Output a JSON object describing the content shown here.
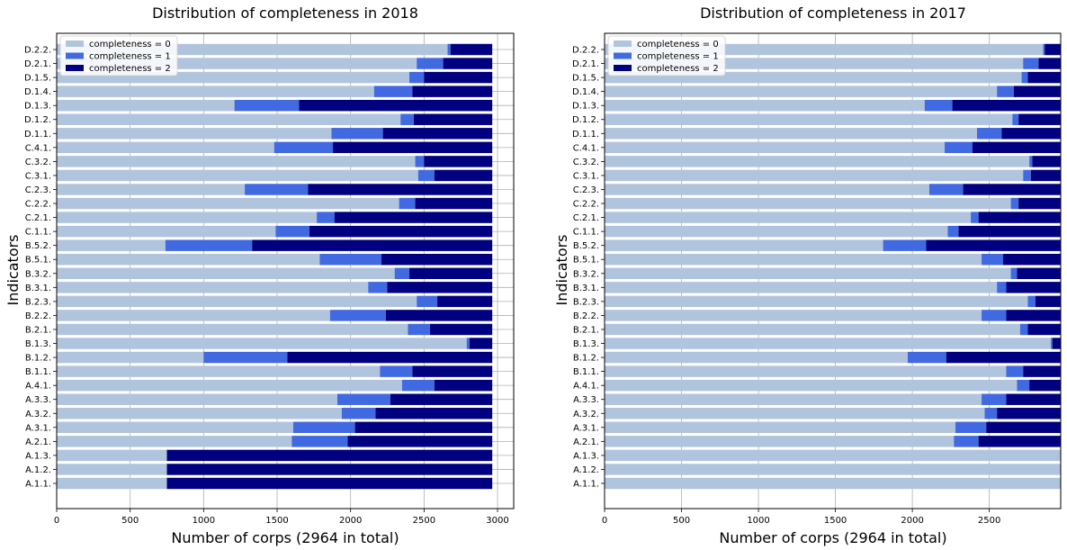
{
  "colors": {
    "c0": "#b0c4de",
    "c1": "#4169e1",
    "c2": "#000080"
  },
  "chart_data": [
    {
      "type": "bar",
      "orientation": "horizontal",
      "stacked": true,
      "title": "Distribution of completeness in 2018",
      "xlabel": "Number of corps (2964 in total)",
      "ylabel": "Indicators",
      "xlim": [
        0,
        3110
      ],
      "xticks": [
        0,
        500,
        1000,
        1500,
        2000,
        2500,
        3000
      ],
      "grid": true,
      "legend_position": "top-left",
      "categories": [
        "A.1.1.",
        "A.1.2.",
        "A.1.3.",
        "A.2.1.",
        "A.3.1.",
        "A.3.2.",
        "A.3.3.",
        "A.4.1.",
        "B.1.1.",
        "B.1.2.",
        "B.1.3.",
        "B.2.1.",
        "B.2.2.",
        "B.2.3.",
        "B.3.1.",
        "B.3.2.",
        "B.5.1.",
        "B.5.2.",
        "C.1.1.",
        "C.2.1.",
        "C.2.2.",
        "C.2.3.",
        "C.3.1.",
        "C.3.2.",
        "C.4.1.",
        "D.1.1.",
        "D.1.2.",
        "D.1.3.",
        "D.1.4.",
        "D.1.5.",
        "D.2.1.",
        "D.2.2."
      ],
      "series": [
        {
          "name": "completeness = 0",
          "color": "#b0c4de",
          "values": [
            750,
            750,
            750,
            1600,
            1610,
            1940,
            1910,
            2350,
            2200,
            1000,
            2790,
            2390,
            1860,
            2450,
            2120,
            2300,
            1790,
            740,
            1490,
            1770,
            2330,
            1280,
            2460,
            2440,
            1480,
            1870,
            2340,
            1210,
            2160,
            2400,
            2450,
            2660
          ]
        },
        {
          "name": "completeness = 1",
          "color": "#4169e1",
          "values": [
            0,
            0,
            0,
            380,
            420,
            230,
            360,
            220,
            220,
            570,
            20,
            150,
            380,
            140,
            130,
            100,
            420,
            590,
            230,
            120,
            110,
            430,
            110,
            60,
            400,
            350,
            90,
            440,
            260,
            100,
            180,
            20
          ]
        },
        {
          "name": "completeness = 2",
          "color": "#000080",
          "values": [
            2214,
            2214,
            2214,
            984,
            934,
            794,
            694,
            394,
            544,
            1394,
            154,
            424,
            724,
            374,
            714,
            564,
            754,
            1634,
            1244,
            1074,
            524,
            1254,
            394,
            464,
            1084,
            744,
            534,
            1314,
            544,
            464,
            334,
            284
          ]
        }
      ]
    },
    {
      "type": "bar",
      "orientation": "horizontal",
      "stacked": true,
      "title": "Distribution of completeness in 2017",
      "xlabel": "Number of corps (2964 in total)",
      "ylabel": "Indicators",
      "xlim": [
        0,
        2964
      ],
      "xticks": [
        0,
        500,
        1000,
        1500,
        2000,
        2500
      ],
      "grid": true,
      "legend_position": "top-left",
      "categories": [
        "A.1.1.",
        "A.1.2.",
        "A.1.3.",
        "A.2.1.",
        "A.3.1.",
        "A.3.2.",
        "A.3.3.",
        "A.4.1.",
        "B.1.1.",
        "B.1.2.",
        "B.1.3.",
        "B.2.1.",
        "B.2.2.",
        "B.2.3.",
        "B.3.1.",
        "B.3.2.",
        "B.5.1.",
        "B.5.2.",
        "C.1.1.",
        "C.2.1.",
        "C.2.2.",
        "C.2.3.",
        "C.3.1.",
        "C.3.2.",
        "C.4.1.",
        "D.1.1.",
        "D.1.2.",
        "D.1.3.",
        "D.1.4.",
        "D.1.5.",
        "D.2.1.",
        "D.2.2."
      ],
      "series": [
        {
          "name": "completeness = 0",
          "color": "#b0c4de",
          "values": [
            2964,
            2964,
            2964,
            2270,
            2280,
            2470,
            2450,
            2680,
            2610,
            1970,
            2900,
            2700,
            2450,
            2750,
            2550,
            2640,
            2450,
            1810,
            2230,
            2380,
            2640,
            2110,
            2720,
            2760,
            2210,
            2420,
            2650,
            2080,
            2550,
            2710,
            2720,
            2850
          ]
        },
        {
          "name": "completeness = 1",
          "color": "#4169e1",
          "values": [
            0,
            0,
            0,
            160,
            200,
            80,
            160,
            80,
            110,
            250,
            10,
            50,
            160,
            50,
            60,
            40,
            140,
            280,
            70,
            50,
            50,
            220,
            50,
            20,
            180,
            160,
            40,
            180,
            110,
            40,
            100,
            10
          ]
        },
        {
          "name": "completeness = 2",
          "color": "#000080",
          "values": [
            0,
            0,
            0,
            534,
            484,
            414,
            354,
            204,
            244,
            744,
            54,
            214,
            354,
            164,
            354,
            284,
            374,
            874,
            664,
            534,
            274,
            634,
            194,
            184,
            574,
            384,
            274,
            704,
            304,
            214,
            144,
            104
          ]
        }
      ]
    }
  ]
}
